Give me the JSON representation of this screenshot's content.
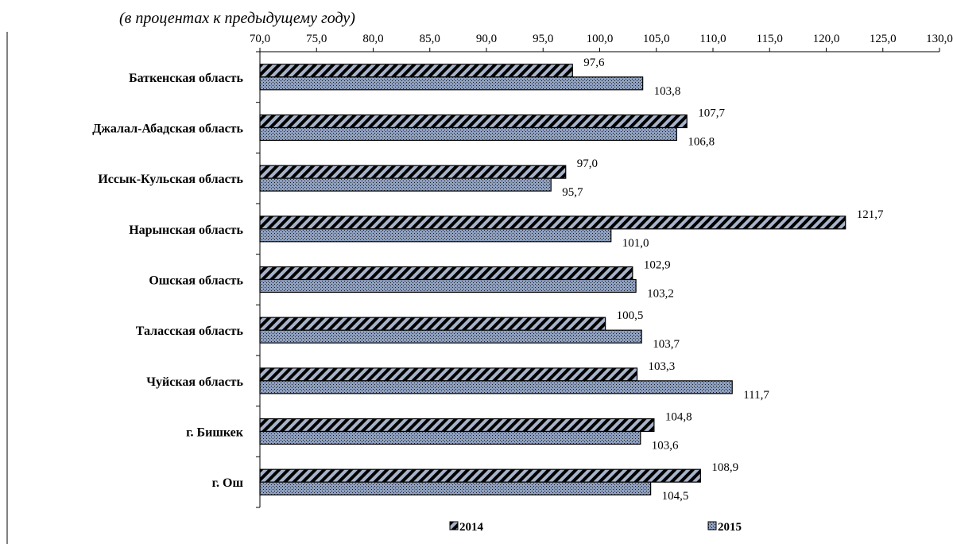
{
  "chart_data": {
    "type": "bar",
    "orientation": "horizontal",
    "title": "",
    "subtitle": "(в процентах к предыдущему году)",
    "xlim": [
      70,
      130
    ],
    "xticks": [
      "70,0",
      "75,0",
      "80,0",
      "85,0",
      "90,0",
      "95,0",
      "100,0",
      "105,0",
      "110,0",
      "115,0",
      "120,0",
      "125,0",
      "130,0"
    ],
    "categories": [
      "Баткенская область",
      "Джалал-Абадская область",
      "Иссык-Кульская   область",
      "Нарынская  область",
      "Ошская область",
      "Таласская область",
      "Чуйская область",
      "г. Бишкек",
      "г. Ош"
    ],
    "series": [
      {
        "name": "2014",
        "values": [
          97.6,
          107.7,
          97.0,
          121.7,
          102.9,
          100.5,
          103.3,
          104.8,
          108.9
        ],
        "labels": [
          "97,6",
          "107,7",
          "97,0",
          "121,7",
          "102,9",
          "100,5",
          "103,3",
          "104,8",
          "108,9"
        ],
        "color": "#a7b3c9",
        "pattern": "diagonal-stripes"
      },
      {
        "name": "2015",
        "values": [
          103.8,
          106.8,
          95.7,
          101.0,
          103.2,
          103.7,
          111.7,
          103.6,
          104.5
        ],
        "labels": [
          "103,8",
          "106,8",
          "95,7",
          "101,0",
          "103,2",
          "103,7",
          "111,7",
          "103,6",
          "104,5"
        ],
        "color": "#8ea0c0",
        "pattern": "dots"
      }
    ],
    "legend_position": "bottom",
    "grid": false
  }
}
